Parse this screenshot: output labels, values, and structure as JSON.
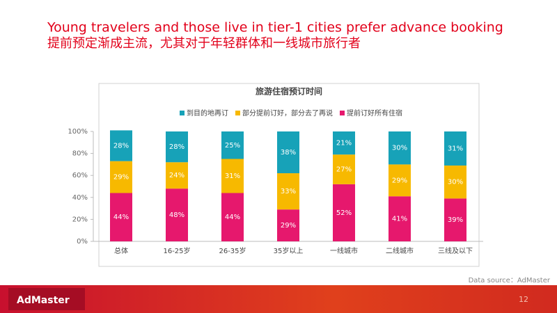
{
  "slide": {
    "title": "Young travelers and those live in tier-1 cities prefer advance booking",
    "subtitle": "提前预定渐成主流，尤其对于年轻群体和一线城市旅行者",
    "source": "Data source：AdMaster",
    "page_number": "12",
    "logo": "AdMaster"
  },
  "chart_data": {
    "type": "stacked_bar",
    "title": "旅游住宿预订时间",
    "categories": [
      "总体",
      "16-25岁",
      "26-35岁",
      "35岁以上",
      "一线城市",
      "二线城市",
      "三线及以下"
    ],
    "series": [
      {
        "name": "到目的地再订",
        "color": "#17a2b8",
        "values": [
          28,
          28,
          25,
          38,
          21,
          30,
          31
        ],
        "value_labels": [
          "28%",
          "28%",
          "25%",
          "38%",
          "21%",
          "30%",
          "31%"
        ]
      },
      {
        "name": "部分提前订好，部分去了再说",
        "color": "#f7b900",
        "values": [
          29,
          24,
          31,
          33,
          27,
          29,
          30
        ],
        "value_labels": [
          "29%",
          "24%",
          "31%",
          "33%",
          "27%",
          "29%",
          "30%"
        ]
      },
      {
        "name": "提前订好所有住宿",
        "color": "#e6186d",
        "values": [
          44,
          48,
          44,
          29,
          52,
          41,
          39
        ],
        "value_labels": [
          "44%",
          "48%",
          "44%",
          "29%",
          "52%",
          "41%",
          "39%"
        ]
      }
    ],
    "ylim": [
      0,
      100
    ],
    "yticks": [
      {
        "value": 0,
        "label": "0%"
      },
      {
        "value": 20,
        "label": "20%"
      },
      {
        "value": 40,
        "label": "40%"
      },
      {
        "value": 60,
        "label": "60%"
      },
      {
        "value": 80,
        "label": "80%"
      },
      {
        "value": 100,
        "label": "100%"
      }
    ],
    "legend": "top"
  }
}
